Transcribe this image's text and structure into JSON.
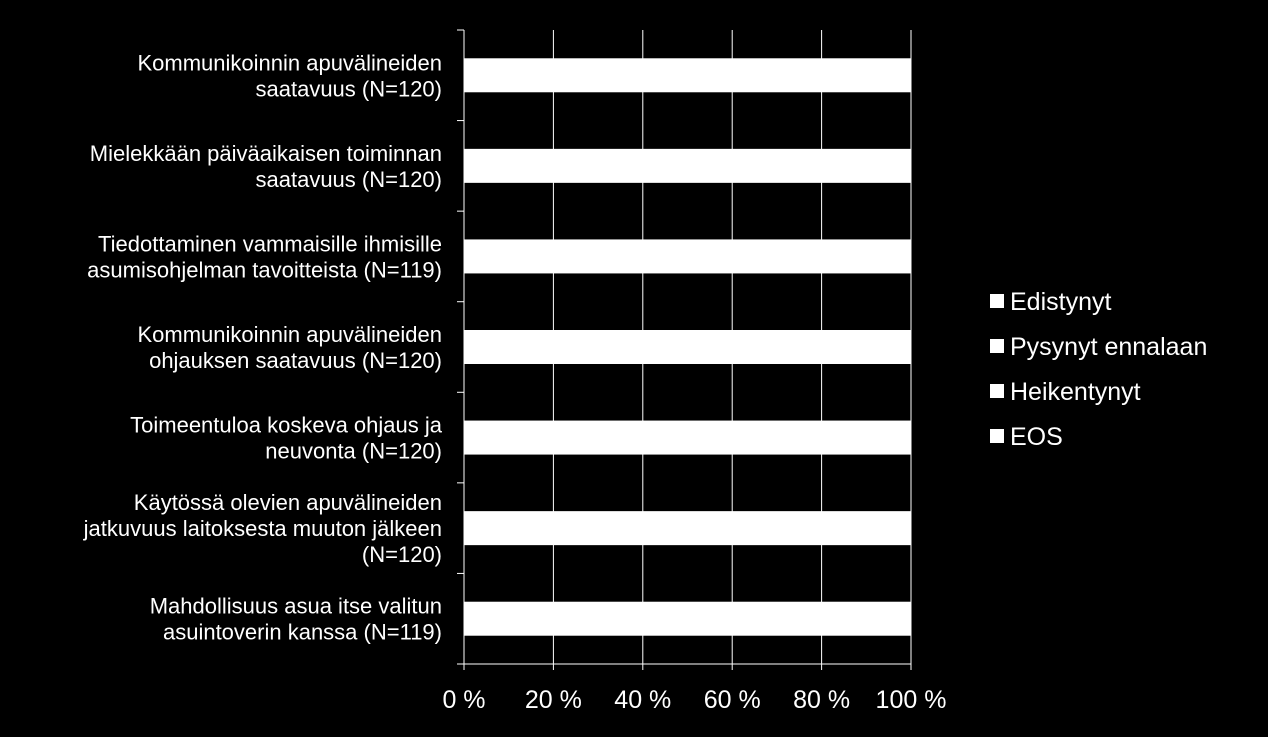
{
  "colors": {
    "background": "#000000",
    "bar": "#ffffff",
    "grid": "#ffffff",
    "text": "#ffffff"
  },
  "chart_data": {
    "type": "bar",
    "orientation": "horizontal",
    "stacked": true,
    "title": "",
    "xlabel": "",
    "ylabel": "",
    "xlim": [
      0,
      100
    ],
    "x_ticks": [
      "0 %",
      "20 %",
      "40 %",
      "60 %",
      "80 %",
      "100 %"
    ],
    "grid": true,
    "legend_position": "right",
    "categories": [
      [
        "Kommunikoinnin apuvälineiden",
        "saatavuus (N=120)"
      ],
      [
        "Mielekkään päiväaikaisen toiminnan",
        "saatavuus (N=120)"
      ],
      [
        "Tiedottaminen vammaisille ihmisille",
        "asumisohjelman tavoitteista (N=119)"
      ],
      [
        "Kommunikoinnin apuvälineiden",
        "ohjauksen saatavuus (N=120)"
      ],
      [
        "Toimeentuloa koskeva ohjaus ja",
        "neuvonta (N=120)"
      ],
      [
        "Käytössä olevien apuvälineiden",
        "jatkuvuus laitoksesta muuton jälkeen",
        "(N=120)"
      ],
      [
        "Mahdollisuus asua itse valitun",
        "asuintoverin kanssa (N=119)"
      ]
    ],
    "series": [
      {
        "name": "Edistynyt",
        "color": "#ffffff"
      },
      {
        "name": "Pysynyt ennalaan",
        "color": "#ffffff"
      },
      {
        "name": "Heikentynyt",
        "color": "#ffffff"
      },
      {
        "name": "EOS",
        "color": "#ffffff"
      }
    ],
    "totals": [
      100,
      100,
      100,
      100,
      100,
      100,
      100
    ]
  }
}
